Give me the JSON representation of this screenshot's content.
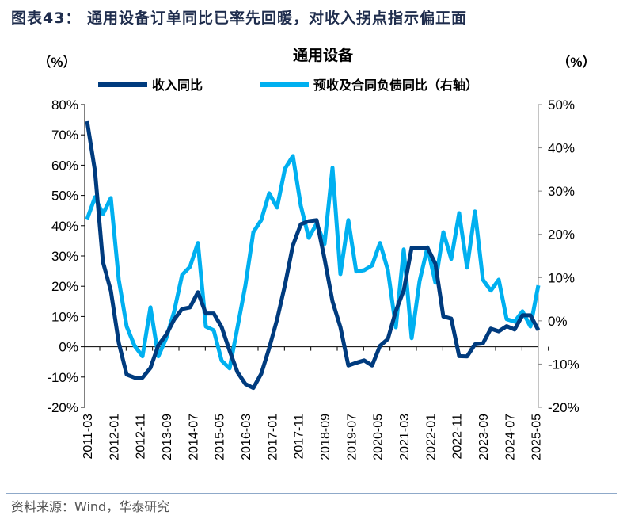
{
  "figure_title": "图表43：  通用设备订单同比已率先回暖，对收入拐点指示偏正面",
  "source": "资料来源：Wind，华泰研究",
  "chart_data": {
    "type": "line",
    "title": "通用设备",
    "ylabel_left": "（%）",
    "ylabel_right": "（%）",
    "ylim_left": [
      -20,
      80
    ],
    "ylim_right": [
      -20,
      50
    ],
    "yticks_left": [
      "-20%",
      "-10%",
      "0%",
      "10%",
      "20%",
      "30%",
      "40%",
      "50%",
      "60%",
      "70%",
      "80%"
    ],
    "yticks_right": [
      "-20%",
      "-10%",
      "0%",
      "10%",
      "20%",
      "30%",
      "40%",
      "50%"
    ],
    "xticks": [
      "2011-03",
      "2012-01",
      "2012-11",
      "2013-09",
      "2014-07",
      "2015-05",
      "2016-03",
      "2017-01",
      "2017-11",
      "2018-09",
      "2019-07",
      "2020-05",
      "2021-03",
      "2022-01",
      "2022-11",
      "2023-09",
      "2024-07",
      "2025-05"
    ],
    "x_start": "2011-03",
    "x_step_months": 3,
    "legend_position": "top",
    "grid": false,
    "series": [
      {
        "name": "收入同比",
        "axis": "left",
        "color": "#003b7e",
        "values": [
          74.5,
          58,
          28,
          18.5,
          1.3,
          -9.2,
          -10.2,
          -10.2,
          -7,
          0.5,
          4,
          9,
          12.5,
          13,
          18,
          11,
          11,
          6.5,
          -1.3,
          -8.4,
          -12.3,
          -13.6,
          -8.9,
          -0.5,
          9,
          20.4,
          33.5,
          40.5,
          41.5,
          41.8,
          29,
          15,
          6.5,
          -6.2,
          -5.3,
          -4.5,
          -6.2,
          0.3,
          2.6,
          11.8,
          18.6,
          32.7,
          32.5,
          32.7,
          27.4,
          10,
          9.3,
          -3.1,
          -3.2,
          0.8,
          1.1,
          6,
          5.1,
          6.8,
          5.7,
          10.4,
          10.4,
          5.5
        ]
      },
      {
        "name": "预收及合同负债同比（右轴）",
        "axis": "right",
        "color": "#00b0f0",
        "values": [
          23.5,
          28.6,
          24.7,
          28.4,
          9.5,
          -1.3,
          -5.8,
          -8.2,
          3.1,
          -8.2,
          -4,
          2.2,
          10.6,
          12.5,
          18,
          -1.3,
          -2.2,
          -9.2,
          -11,
          -1.5,
          8.2,
          20.5,
          23.3,
          29.5,
          26.2,
          35.2,
          38.1,
          26.6,
          19.2,
          22.5,
          17.8,
          35.4,
          10.8,
          23.3,
          11.4,
          11.7,
          12.8,
          18,
          11.7,
          -1.5,
          16.5,
          -4,
          9.2,
          17,
          8.8,
          20.5,
          14.3,
          24.9,
          12.3,
          25.3,
          9.5,
          7,
          9.5,
          0.4,
          -0.2,
          2.2,
          -1.3,
          8.2
        ]
      }
    ]
  }
}
